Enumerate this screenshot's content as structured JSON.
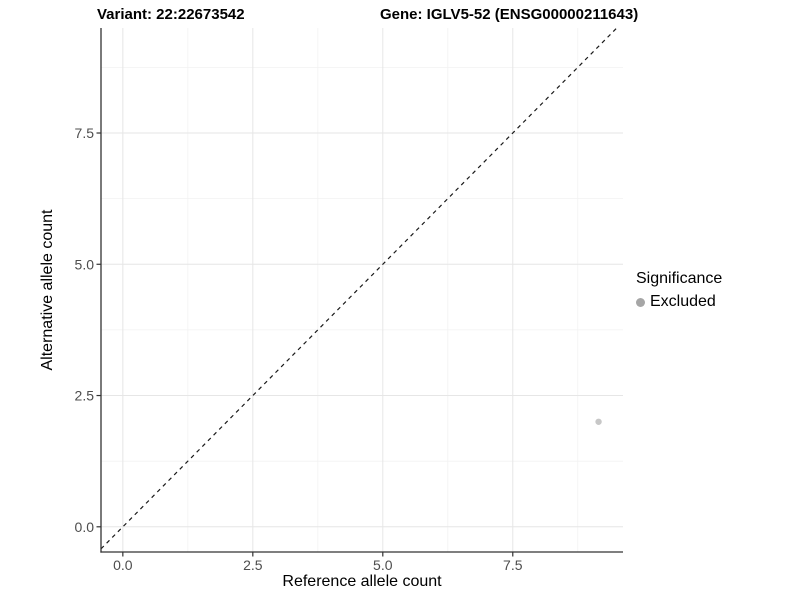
{
  "chart_data": {
    "type": "scatter",
    "titles": {
      "variant": "Variant: 22:22673542",
      "gene": "Gene: IGLV5-52 (ENSG00000211643)"
    },
    "xlabel": "Reference allele count",
    "ylabel": "Alternative allele count",
    "xlim": [
      -0.42,
      9.62
    ],
    "ylim": [
      -0.48,
      9.5
    ],
    "x_ticks": [
      0.0,
      2.5,
      5.0,
      7.5
    ],
    "y_ticks": [
      0.0,
      2.5,
      5.0,
      7.5
    ],
    "x_tick_labels": [
      "0.0",
      "2.5",
      "5.0",
      "7.5"
    ],
    "y_tick_labels": [
      "0.0",
      "2.5",
      "5.0",
      "7.5"
    ],
    "x_minor_ticks": [
      1.25,
      3.75,
      6.25,
      8.75
    ],
    "y_minor_ticks": [
      1.25,
      3.75,
      6.25,
      8.75
    ],
    "grid": "major+minor",
    "series": [
      {
        "name": "Excluded",
        "color": "#c7c7c7",
        "points": [
          {
            "x": 9.15,
            "y": 2.0
          }
        ]
      }
    ],
    "reference_line": {
      "type": "identity",
      "slope": 1,
      "intercept": 0,
      "style": "dashed"
    },
    "legend": {
      "position": "right",
      "title": "Significance",
      "items": [
        {
          "label": "Excluded",
          "color": "#a6a6a6"
        }
      ]
    }
  },
  "colors": {
    "background": "#ffffff",
    "axis_line": "#333333",
    "grid_major": "#e6e6e6",
    "grid_minor": "#f2f2f2",
    "tick_label": "#4d4d4d",
    "title_text": "#000000",
    "reference_line": "#1a1a1a",
    "point": "#c7c7c7",
    "legend_swatch": "#a6a6a6"
  }
}
